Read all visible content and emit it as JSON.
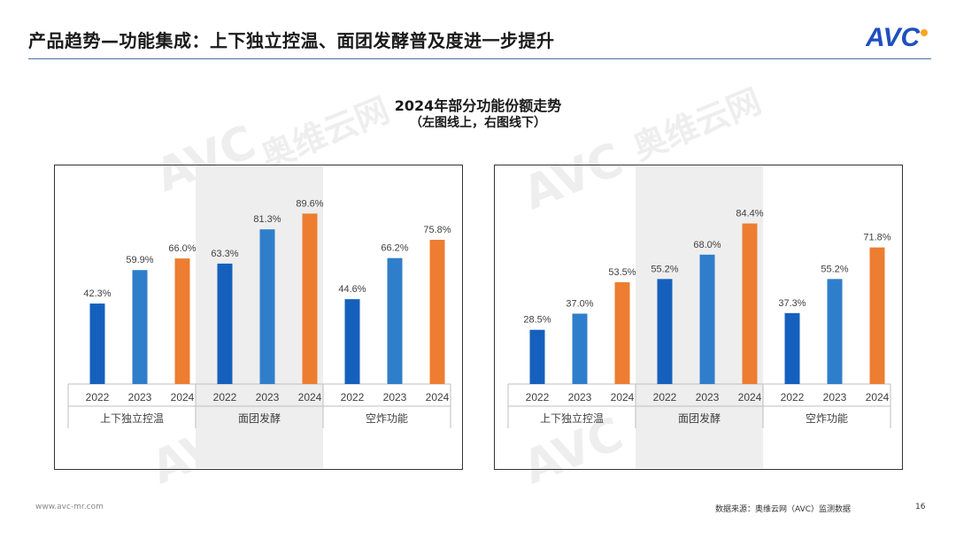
{
  "header": {
    "title": "产品趋势—功能集成：上下独立控温、面团发酵普及度进一步提升",
    "logo_text": "AVC"
  },
  "chart_heading": {
    "title": "2024年部分功能份额走势",
    "subtitle": "（左图线上，右图线下）"
  },
  "footer": {
    "url": "www.avc-mr.com",
    "source": "数据来源：奥维云网（AVC）监测数据",
    "page": "16"
  },
  "colors": {
    "year_2022": "#1560bd",
    "year_2023": "#2f7ecb",
    "year_2024": "#ed7d31",
    "highlight_band": "#eeeeee",
    "logo_blue": "#1f4fbf",
    "logo_orange": "#f5a623"
  },
  "chart_data": [
    {
      "type": "bar",
      "label_format": "percent",
      "groups": [
        "上下独立控温",
        "面团发酵",
        "空炸功能"
      ],
      "years": [
        "2022",
        "2023",
        "2024"
      ],
      "values": [
        [
          42.3,
          59.9,
          66.0
        ],
        [
          63.3,
          81.3,
          89.6
        ],
        [
          44.6,
          66.2,
          75.8
        ]
      ],
      "labels": [
        [
          "42.3%",
          "59.9%",
          "66.0%"
        ],
        [
          "63.3%",
          "81.3%",
          "89.6%"
        ],
        [
          "44.6%",
          "66.2%",
          "75.8%"
        ]
      ],
      "highlight_group": 1,
      "ylim": [
        0,
        100
      ],
      "grid": false
    },
    {
      "type": "bar",
      "label_format": "percent",
      "groups": [
        "上下独立控温",
        "面团发酵",
        "空炸功能"
      ],
      "years": [
        "2022",
        "2023",
        "2024"
      ],
      "values": [
        [
          28.5,
          37.0,
          53.5
        ],
        [
          55.2,
          68.0,
          84.4
        ],
        [
          37.3,
          55.2,
          71.8
        ]
      ],
      "labels": [
        [
          "28.5%",
          "37.0%",
          "53.5%"
        ],
        [
          "55.2%",
          "68.0%",
          "84.4%"
        ],
        [
          "37.3%",
          "55.2%",
          "71.8%"
        ]
      ],
      "highlight_group": 1,
      "ylim": [
        0,
        100
      ],
      "grid": false
    }
  ]
}
